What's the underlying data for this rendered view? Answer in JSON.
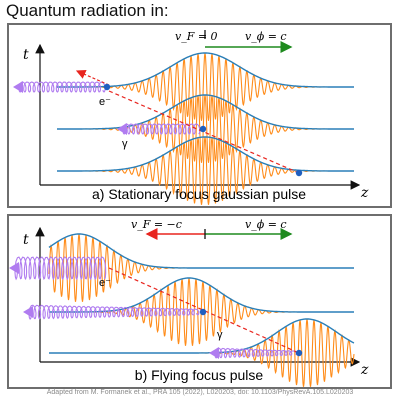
{
  "title": "Quantum radiation in:",
  "axis": {
    "t": "t",
    "z": "z"
  },
  "panel_a": {
    "caption": "a) Stationary focus gaussian pulse",
    "focus_velocity": "v_F = 0",
    "phase_velocity": "v_ϕ = c",
    "electron_label": "e⁻",
    "photon_label": "γ"
  },
  "panel_b": {
    "caption": "b) Flying focus pulse",
    "focus_velocity": "v_F = −c",
    "phase_velocity": "v_ϕ = c",
    "electron_label": "e⁻",
    "photon_label": "γ"
  },
  "credit": "Adapted from M. Formanek et al., PRA 105 (2022), L020203, doi: 10.1103/PhysRevA.105.L020203",
  "colors": {
    "wave": "#ff8c1a",
    "envelope": "#2a7fb8",
    "photon": "#b07cf0",
    "trajectory": "#e8251f",
    "arrow_right": "#1e8a1e",
    "arrow_left": "#e8251f",
    "electron": "#1f5fbf",
    "frame": "#6e6e6e"
  }
}
